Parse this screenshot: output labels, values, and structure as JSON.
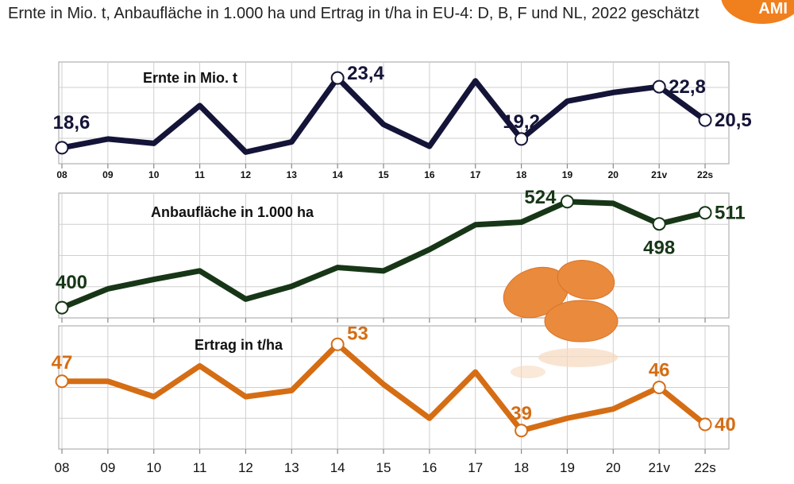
{
  "title": "Ernte in Mio. t, Anbaufläche in 1.000 ha und Ertrag in t/ha in EU-4: D, B, F und NL, 2022 geschätzt",
  "logo_text": "AMI",
  "colors": {
    "ernte": "#141438",
    "anbau": "#173617",
    "ertrag": "#d56d14",
    "grid": "#b0b0b0",
    "potato": "#ea8a3c"
  },
  "chart_data": [
    {
      "type": "line",
      "title": "Ernte in Mio. t",
      "categories": [
        "08",
        "09",
        "10",
        "11",
        "12",
        "13",
        "14",
        "15",
        "16",
        "17",
        "18",
        "19",
        "20",
        "21v",
        "22s"
      ],
      "tick_labels": [
        "08",
        "09",
        "10",
        "11",
        "12",
        "13",
        "14",
        "15",
        "16",
        "17",
        "18",
        "19",
        "20",
        "21v",
        "22s"
      ],
      "values": [
        18.6,
        19.2,
        18.9,
        21.5,
        18.3,
        19.0,
        23.4,
        20.2,
        18.7,
        23.2,
        19.2,
        21.8,
        22.4,
        22.8,
        20.5
      ],
      "ylim": [
        17.5,
        24.5
      ],
      "labels": [
        {
          "index": 0,
          "text": "18,6",
          "pos": "above-left"
        },
        {
          "index": 6,
          "text": "23,4",
          "pos": "right"
        },
        {
          "index": 10,
          "text": "19,2",
          "pos": "above"
        },
        {
          "index": 13,
          "text": "22,8",
          "pos": "right"
        },
        {
          "index": 14,
          "text": "20,5",
          "pos": "right"
        }
      ],
      "markers": [
        0,
        6,
        10,
        13,
        14
      ]
    },
    {
      "type": "line",
      "title": "Anbaufläche in 1.000 ha",
      "categories": [
        "08",
        "09",
        "10",
        "11",
        "12",
        "13",
        "14",
        "15",
        "16",
        "17",
        "18",
        "19",
        "20",
        "21v",
        "22s"
      ],
      "values": [
        400,
        422,
        433,
        443,
        410,
        425,
        447,
        443,
        468,
        497,
        500,
        524,
        522,
        498,
        511
      ],
      "ylim": [
        388,
        534
      ],
      "labels": [
        {
          "index": 0,
          "text": "400",
          "pos": "above-left"
        },
        {
          "index": 11,
          "text": "524",
          "pos": "left"
        },
        {
          "index": 13,
          "text": "498",
          "pos": "below"
        },
        {
          "index": 14,
          "text": "511",
          "pos": "right"
        }
      ],
      "markers": [
        0,
        11,
        13,
        14
      ]
    },
    {
      "type": "line",
      "title": "Ertrag in t/ha",
      "categories": [
        "08",
        "09",
        "10",
        "11",
        "12",
        "13",
        "14",
        "15",
        "16",
        "17",
        "18",
        "19",
        "20",
        "21v",
        "22s"
      ],
      "tick_labels": [
        "08",
        "09",
        "10",
        "11",
        "12",
        "13",
        "14",
        "15",
        "16",
        "17",
        "18",
        "19",
        "20",
        "21v",
        "22s"
      ],
      "values": [
        47,
        47,
        44.5,
        49.5,
        44.5,
        45.5,
        53,
        46.5,
        41,
        48.5,
        39,
        41,
        42.5,
        46,
        40
      ],
      "ylim": [
        36,
        56
      ],
      "labels": [
        {
          "index": 0,
          "text": "47",
          "pos": "above"
        },
        {
          "index": 6,
          "text": "53",
          "pos": "right"
        },
        {
          "index": 10,
          "text": "39",
          "pos": "above"
        },
        {
          "index": 13,
          "text": "46",
          "pos": "above"
        },
        {
          "index": 14,
          "text": "40",
          "pos": "right"
        }
      ],
      "markers": [
        0,
        6,
        10,
        13,
        14
      ]
    }
  ]
}
